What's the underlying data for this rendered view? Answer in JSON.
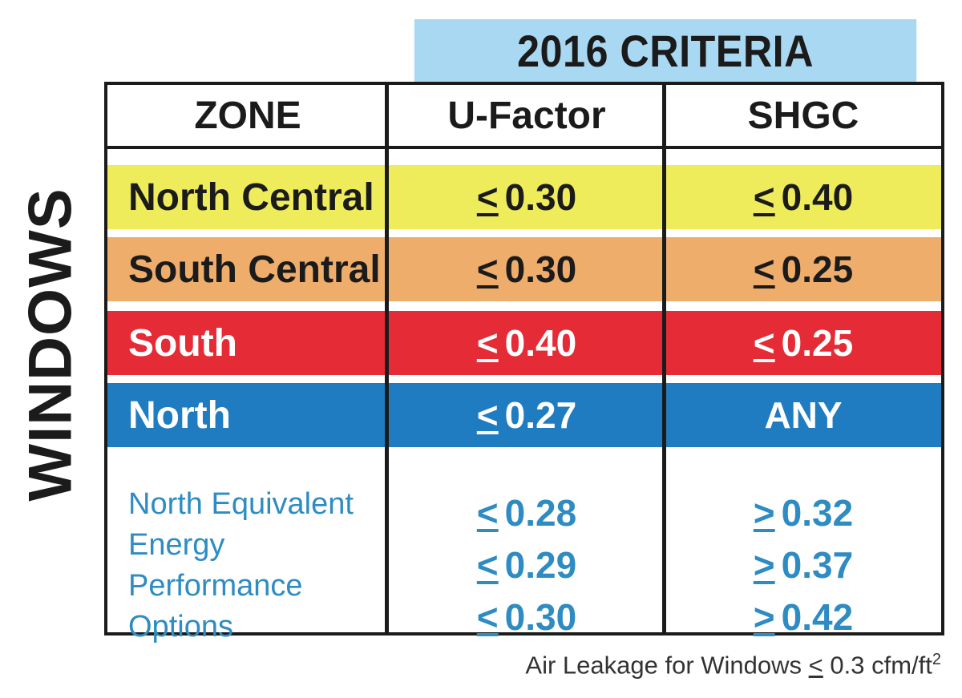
{
  "header": {
    "title": "2016 CRITERIA"
  },
  "side_label": "WINDOWS",
  "columns": {
    "zone": "ZONE",
    "u_factor": "U-Factor",
    "shgc": "SHGC"
  },
  "rows": [
    {
      "zone": "North Central",
      "u_sym": "<",
      "u_val": "0.30",
      "s_sym": "<",
      "s_val": "0.40",
      "bg": "#eeec5b",
      "fg": "#1b1b1b"
    },
    {
      "zone": "South Central",
      "u_sym": "<",
      "u_val": "0.30",
      "s_sym": "<",
      "s_val": "0.25",
      "bg": "#efad6b",
      "fg": "#1b1b1b"
    },
    {
      "zone": "South",
      "u_sym": "<",
      "u_val": "0.40",
      "s_sym": "<",
      "s_val": "0.25",
      "bg": "#e52b35",
      "fg": "#ffffff"
    },
    {
      "zone": "North",
      "u_sym": "<",
      "u_val": "0.27",
      "s_sym": "",
      "s_val": "ANY",
      "bg": "#1f7cc0",
      "fg": "#ffffff"
    }
  ],
  "options": {
    "zone_lines": [
      "North Equivalent",
      "Energy",
      "Performance",
      "Options"
    ],
    "u": [
      {
        "sym": "<",
        "val": "0.28"
      },
      {
        "sym": "<",
        "val": "0.29"
      },
      {
        "sym": "<",
        "val": "0.30"
      }
    ],
    "s": [
      {
        "sym": ">",
        "val": "0.32"
      },
      {
        "sym": ">",
        "val": "0.37"
      },
      {
        "sym": ">",
        "val": "0.42"
      }
    ]
  },
  "footnote": {
    "prefix": "Air Leakage for Windows",
    "sym": "<",
    "value": "0.3 cfm/ft",
    "sup": "2"
  }
}
